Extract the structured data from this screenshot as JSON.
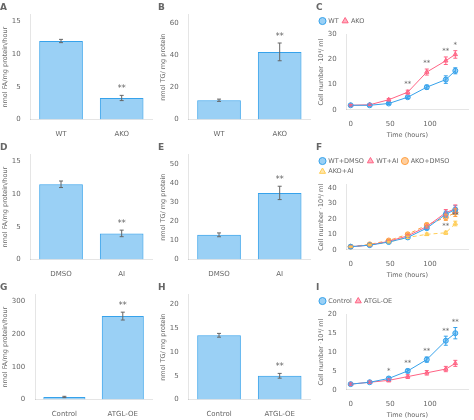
{
  "chart_data": [
    {
      "type": "bar",
      "title": "A",
      "categories": [
        "WT",
        "AKO"
      ],
      "values": [
        12.0,
        3.3
      ],
      "errors": [
        0.25,
        0.4
      ],
      "ylim": [
        0,
        16
      ],
      "yticks": [
        0,
        5,
        10,
        15
      ],
      "ylabel": "nmol FA/mg protein/hour",
      "grid": false,
      "annotations": [
        {
          "x": "AKO",
          "text": "**"
        }
      ]
    },
    {
      "type": "bar",
      "title": "B",
      "categories": [
        "WT",
        "AKO"
      ],
      "values": [
        12.0,
        42.0
      ],
      "errors": [
        0.7,
        5.5
      ],
      "ylim": [
        0,
        65
      ],
      "yticks": [
        0,
        20,
        40,
        60
      ],
      "ylabel": "nmol TG/ mg protein",
      "grid": false,
      "annotations": [
        {
          "x": "AKO",
          "text": "**"
        }
      ]
    },
    {
      "type": "line",
      "title": "C",
      "x": [
        0,
        24,
        48,
        72,
        96,
        120,
        132
      ],
      "series": [
        {
          "name": "WT",
          "values": [
            1.8,
            1.8,
            2.5,
            5.0,
            9.0,
            12.0,
            15.5
          ],
          "errors": [
            0.3,
            0.3,
            0.4,
            0.5,
            0.8,
            1.5,
            1.2
          ],
          "marker": "circle",
          "line_style": "solid"
        },
        {
          "name": "AKO",
          "values": [
            1.8,
            2.0,
            4.0,
            7.0,
            15.0,
            19.5,
            22.0
          ],
          "errors": [
            0.3,
            0.3,
            0.5,
            0.8,
            1.2,
            1.5,
            1.5
          ],
          "marker": "triangle",
          "line_style": "solid"
        }
      ],
      "ylabel": "Cell number ·10⁴/ ml",
      "xlabel": "Time (hours)",
      "ylim": [
        0,
        30
      ],
      "yticks": [
        0,
        10,
        20,
        30
      ],
      "xlim": [
        -5,
        148
      ],
      "xticks": [
        0,
        50,
        100
      ],
      "grid": false,
      "legend": "upper left",
      "annotations": [
        {
          "x": 72,
          "text": "**",
          "series": "AKO"
        },
        {
          "x": 96,
          "text": "**",
          "series": "AKO"
        },
        {
          "x": 120,
          "text": "**",
          "series": "AKO"
        },
        {
          "x": 132,
          "text": "*",
          "series": "AKO"
        }
      ]
    },
    {
      "type": "bar",
      "title": "D",
      "categories": [
        "DMSO",
        "AI"
      ],
      "values": [
        11.5,
        4.0
      ],
      "errors": [
        0.5,
        0.5
      ],
      "ylim": [
        0,
        16
      ],
      "yticks": [
        0,
        5,
        10,
        15
      ],
      "ylabel": "nmol FA/mg protein/hour",
      "grid": false,
      "annotations": [
        {
          "x": "AI",
          "text": "**"
        }
      ]
    },
    {
      "type": "bar",
      "title": "E",
      "categories": [
        "DMSO",
        "AI"
      ],
      "values": [
        13.0,
        35.0
      ],
      "errors": [
        1.0,
        3.5
      ],
      "ylim": [
        0,
        55
      ],
      "yticks": [
        0,
        10,
        20,
        30,
        40,
        50
      ],
      "ylabel": "nmol TG/ mg protein",
      "grid": false,
      "annotations": [
        {
          "x": "AI",
          "text": "**"
        }
      ]
    },
    {
      "type": "line",
      "title": "F",
      "x": [
        0,
        24,
        48,
        72,
        96,
        120,
        132
      ],
      "series": [
        {
          "name": "WT+DMSO",
          "values": [
            2.0,
            3.0,
            5.0,
            8.0,
            14.0,
            23.0,
            26.0
          ],
          "errors": [
            0.3,
            0.4,
            0.5,
            0.7,
            1.0,
            2.0,
            2.5
          ],
          "marker": "circle",
          "line_style": "solid"
        },
        {
          "name": "WT+AI",
          "values": [
            2.0,
            3.0,
            5.5,
            9.0,
            15.0,
            24.0,
            26.5
          ],
          "errors": [
            0.3,
            0.4,
            0.5,
            0.7,
            1.0,
            2.0,
            2.5
          ],
          "marker": "triangle",
          "line_style": "solid"
        },
        {
          "name": "AKO+DMSO",
          "values": [
            2.0,
            3.5,
            6.0,
            10.0,
            16.0,
            21.0,
            24.0
          ],
          "errors": [
            0.3,
            0.4,
            0.6,
            0.8,
            1.2,
            2.0,
            2.5
          ],
          "marker": "circle",
          "line_style": "dashed"
        },
        {
          "name": "AKO+AI",
          "values": [
            2.0,
            3.0,
            5.0,
            8.0,
            10.0,
            11.0,
            17.0
          ],
          "errors": [
            0.3,
            0.4,
            0.5,
            0.7,
            0.8,
            1.0,
            1.5
          ],
          "marker": "triangle",
          "line_style": "dashed"
        }
      ],
      "ylabel": "Cell number ·10⁴/ ml",
      "xlabel": "Time (hours)",
      "ylim": [
        0,
        42
      ],
      "yticks": [
        0,
        10,
        20,
        30,
        40
      ],
      "xlim": [
        -5,
        148
      ],
      "xticks": [
        0,
        50,
        100
      ],
      "grid": false,
      "legend": "upper left",
      "annotations": [
        {
          "x": 120,
          "text": "**",
          "series": "AKO+AI"
        },
        {
          "x": 132,
          "text": "**",
          "series": "AKO+AI"
        }
      ]
    },
    {
      "type": "bar",
      "title": "G",
      "categories": [
        "Control",
        "ATGL-OE"
      ],
      "values": [
        8.0,
        255.0
      ],
      "errors": [
        2.0,
        12.0
      ],
      "ylim": [
        0,
        320
      ],
      "yticks": [
        0,
        100,
        200,
        300
      ],
      "ylabel": "nmol FA/mg protein/hour",
      "grid": false,
      "annotations": [
        {
          "x": "ATGL-OE",
          "text": "**"
        }
      ]
    },
    {
      "type": "bar",
      "title": "H",
      "categories": [
        "Control",
        "ATGL-OE"
      ],
      "values": [
        13.5,
        5.0
      ],
      "errors": [
        0.4,
        0.5
      ],
      "ylim": [
        0,
        22
      ],
      "yticks": [
        0,
        5,
        10,
        15,
        20
      ],
      "ylabel": "nmol TG/ mg protein",
      "grid": false,
      "annotations": [
        {
          "x": "ATGL-OE",
          "text": "**"
        }
      ]
    },
    {
      "type": "line",
      "title": "I",
      "x": [
        0,
        24,
        48,
        72,
        96,
        120,
        132
      ],
      "series": [
        {
          "name": "Control",
          "values": [
            1.5,
            2.0,
            3.0,
            5.0,
            8.0,
            13.0,
            15.0
          ],
          "errors": [
            0.3,
            0.3,
            0.4,
            0.5,
            0.7,
            1.2,
            1.5
          ],
          "marker": "circle",
          "line_style": "solid"
        },
        {
          "name": "ATGL-OE",
          "values": [
            1.5,
            2.0,
            2.5,
            3.5,
            4.5,
            5.5,
            7.0
          ],
          "errors": [
            0.3,
            0.3,
            0.4,
            0.5,
            0.6,
            0.7,
            0.8
          ],
          "marker": "triangle",
          "line_style": "solid"
        }
      ],
      "ylabel": "Cell number ·10⁴/ ml",
      "xlabel": "Time (hours)",
      "ylim": [
        0,
        20
      ],
      "yticks": [
        0,
        5,
        10,
        15,
        20
      ],
      "xlim": [
        -5,
        148
      ],
      "xticks": [
        0,
        50,
        100
      ],
      "grid": false,
      "legend": "upper left",
      "annotations": [
        {
          "x": 48,
          "text": "*",
          "series": "Control"
        },
        {
          "x": 72,
          "text": "**",
          "series": "Control"
        },
        {
          "x": 96,
          "text": "**",
          "series": "Control"
        },
        {
          "x": 120,
          "text": "**",
          "series": "Control"
        },
        {
          "x": 132,
          "text": "**",
          "series": "Control"
        }
      ]
    }
  ]
}
